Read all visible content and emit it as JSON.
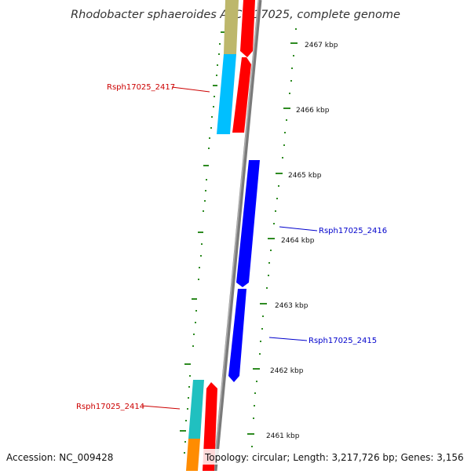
{
  "title": "Rhodobacter sphaeroides ATCC 17025, complete genome",
  "footer": {
    "accession": "Accession: NC_009428",
    "topology": "Topology: circular; Length: 3,217,726 bp; Genes: 3,156"
  },
  "scale_labels": [
    "2467 kbp",
    "2466 kbp",
    "2465 kbp",
    "2464 kbp",
    "2463 kbp",
    "2462 kbp",
    "2461 kbp"
  ],
  "gene_labels": {
    "g2417": "Rsph17025_2417",
    "g2416": "Rsph17025_2416",
    "g2415": "Rsph17025_2415",
    "g2414": "Rsph17025_2414"
  },
  "colors": {
    "forward_strand": "#ff0000",
    "reverse_strand": "#0000ff",
    "scale_ticks": "#228b22",
    "backbone": "#808080",
    "cog_olive": "#bdb76b",
    "cog_sky": "#00bfff",
    "cog_teal": "#20c0c0",
    "cog_orange": "#ff8c00"
  }
}
